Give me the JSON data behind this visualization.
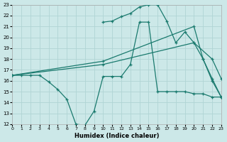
{
  "xlabel": "Humidex (Indice chaleur)",
  "xlim": [
    0,
    23
  ],
  "ylim": [
    12,
    23
  ],
  "xticks": [
    0,
    1,
    2,
    3,
    4,
    5,
    6,
    7,
    8,
    9,
    10,
    11,
    12,
    13,
    14,
    15,
    16,
    17,
    18,
    19,
    20,
    21,
    22,
    23
  ],
  "yticks": [
    12,
    13,
    14,
    15,
    16,
    17,
    18,
    19,
    20,
    21,
    22,
    23
  ],
  "bg_color": "#cce8e8",
  "grid_color": "#b0d4d4",
  "line_color": "#1a7a6e",
  "line1_x": [
    0,
    1,
    2,
    3,
    4,
    5,
    6,
    7,
    8,
    9,
    10,
    11,
    12,
    13,
    14,
    15,
    16,
    17,
    18,
    19,
    20,
    21,
    22,
    23
  ],
  "line1_y": [
    16.5,
    16.5,
    16.5,
    16.5,
    15.9,
    15.2,
    14.3,
    12.0,
    11.9,
    13.2,
    16.4,
    16.4,
    16.4,
    17.5,
    21.4,
    21.4,
    15.0,
    15.0,
    15.0,
    15.0,
    14.8,
    14.8,
    14.5,
    14.5
  ],
  "line2_x": [
    0,
    10,
    20,
    22,
    23
  ],
  "line2_y": [
    16.5,
    17.5,
    19.5,
    18.0,
    16.2
  ],
  "line3_x": [
    0,
    10,
    20,
    21,
    22,
    23
  ],
  "line3_y": [
    16.5,
    17.8,
    21.0,
    18.0,
    16.0,
    14.5
  ],
  "line4_x": [
    10,
    11,
    12,
    13,
    14,
    15,
    16,
    17,
    18,
    19,
    20,
    21,
    22,
    23
  ],
  "line4_y": [
    21.4,
    21.5,
    21.9,
    22.2,
    22.8,
    23.0,
    23.0,
    21.5,
    19.5,
    20.5,
    19.5,
    18.0,
    16.2,
    14.5
  ]
}
